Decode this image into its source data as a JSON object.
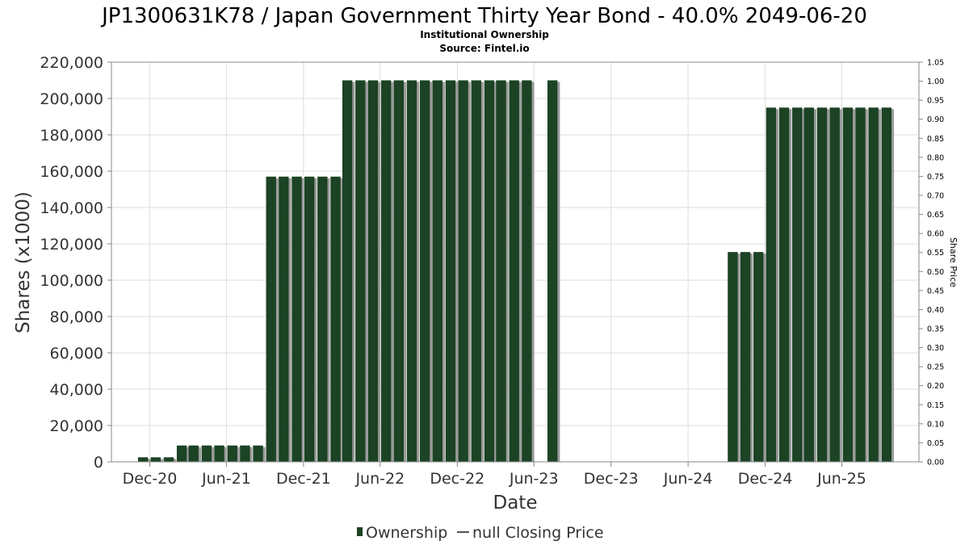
{
  "chart_data": {
    "type": "bar",
    "title": "JP1300631K78 / Japan Government Thirty Year Bond - 40.0% 2049-06-20",
    "subtitle_lines": [
      "Institutional Ownership",
      "Source: Fintel.io"
    ],
    "xlabel": "Date",
    "ylabel": "Shares (x1000)",
    "y2label": "Share Price",
    "ylim": [
      0,
      220000
    ],
    "y2lim": [
      0,
      1.05
    ],
    "yticks": [
      "0",
      "20,000",
      "40,000",
      "60,000",
      "80,000",
      "100,000",
      "120,000",
      "140,000",
      "160,000",
      "180,000",
      "200,000",
      "220,000"
    ],
    "y2ticks": [
      "0.00",
      "0.05",
      "0.10",
      "0.15",
      "0.20",
      "0.25",
      "0.30",
      "0.35",
      "0.40",
      "0.45",
      "0.50",
      "0.55",
      "0.60",
      "0.65",
      "0.70",
      "0.75",
      "0.80",
      "0.85",
      "0.90",
      "0.95",
      "1.00",
      "1.05"
    ],
    "xlim": [
      "2020-09-01",
      "2025-12-01"
    ],
    "xticks": [
      {
        "label": "Dec-20",
        "date": "2020-12-01"
      },
      {
        "label": "Jun-21",
        "date": "2021-06-01"
      },
      {
        "label": "Dec-21",
        "date": "2021-12-01"
      },
      {
        "label": "Jun-22",
        "date": "2022-06-01"
      },
      {
        "label": "Dec-22",
        "date": "2022-12-01"
      },
      {
        "label": "Jun-23",
        "date": "2023-06-01"
      },
      {
        "label": "Dec-23",
        "date": "2023-12-01"
      },
      {
        "label": "Jun-24",
        "date": "2024-06-01"
      },
      {
        "label": "Dec-24",
        "date": "2024-12-01"
      },
      {
        "label": "Jun-25",
        "date": "2025-06-01"
      }
    ],
    "grid": true,
    "legend_position": "bottom",
    "series": [
      {
        "name": "Ownership",
        "type": "bar",
        "color": "#1b4324",
        "points": [
          {
            "date": "2020-11-15",
            "value": 2500
          },
          {
            "date": "2020-12-15",
            "value": 2500
          },
          {
            "date": "2021-01-15",
            "value": 2500
          },
          {
            "date": "2021-02-15",
            "value": 9000
          },
          {
            "date": "2021-03-15",
            "value": 9000
          },
          {
            "date": "2021-04-15",
            "value": 9000
          },
          {
            "date": "2021-05-15",
            "value": 9000
          },
          {
            "date": "2021-06-15",
            "value": 9000
          },
          {
            "date": "2021-07-15",
            "value": 9000
          },
          {
            "date": "2021-08-15",
            "value": 9000
          },
          {
            "date": "2021-09-15",
            "value": 157000
          },
          {
            "date": "2021-10-15",
            "value": 157000
          },
          {
            "date": "2021-11-15",
            "value": 157000
          },
          {
            "date": "2021-12-15",
            "value": 157000
          },
          {
            "date": "2022-01-15",
            "value": 157000
          },
          {
            "date": "2022-02-15",
            "value": 157000
          },
          {
            "date": "2022-03-15",
            "value": 210000
          },
          {
            "date": "2022-04-15",
            "value": 210000
          },
          {
            "date": "2022-05-15",
            "value": 210000
          },
          {
            "date": "2022-06-15",
            "value": 210000
          },
          {
            "date": "2022-07-15",
            "value": 210000
          },
          {
            "date": "2022-08-15",
            "value": 210000
          },
          {
            "date": "2022-09-15",
            "value": 210000
          },
          {
            "date": "2022-10-15",
            "value": 210000
          },
          {
            "date": "2022-11-15",
            "value": 210000
          },
          {
            "date": "2022-12-15",
            "value": 210000
          },
          {
            "date": "2023-01-15",
            "value": 210000
          },
          {
            "date": "2023-02-15",
            "value": 210000
          },
          {
            "date": "2023-03-15",
            "value": 210000
          },
          {
            "date": "2023-04-15",
            "value": 210000
          },
          {
            "date": "2023-05-15",
            "value": 210000
          },
          {
            "date": "2023-07-15",
            "value": 210000
          },
          {
            "date": "2024-09-15",
            "value": 115500
          },
          {
            "date": "2024-10-15",
            "value": 115500
          },
          {
            "date": "2024-11-15",
            "value": 115500
          },
          {
            "date": "2024-12-15",
            "value": 195000
          },
          {
            "date": "2025-01-15",
            "value": 195000
          },
          {
            "date": "2025-02-15",
            "value": 195000
          },
          {
            "date": "2025-03-15",
            "value": 195000
          },
          {
            "date": "2025-04-15",
            "value": 195000
          },
          {
            "date": "2025-05-15",
            "value": 195000
          },
          {
            "date": "2025-06-15",
            "value": 195000
          },
          {
            "date": "2025-07-15",
            "value": 195000
          },
          {
            "date": "2025-08-15",
            "value": 195000
          },
          {
            "date": "2025-09-15",
            "value": 195000
          }
        ]
      },
      {
        "name": "null Closing Price",
        "type": "line",
        "color": "#555555",
        "points": []
      }
    ]
  }
}
